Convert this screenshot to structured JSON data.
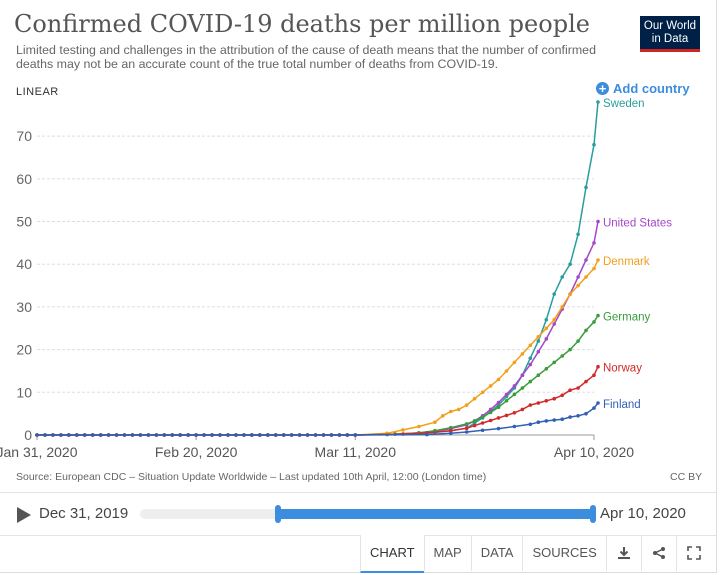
{
  "header": {
    "title": "Confirmed COVID-19 deaths per million people",
    "subtitle": "Limited testing and challenges in the attribution of the cause of death means that the number of confirmed deaths may not be an accurate count of the true total number of deaths from COVID-19.",
    "logo_line1": "Our World",
    "logo_line2": "in Data",
    "scale_mode": "LINEAR",
    "add_country": "Add country"
  },
  "footer": {
    "source": "Source: European CDC – Situation Update Worldwide – Last updated 10th April, 12:00 (London time)",
    "license": "CC BY"
  },
  "timeline": {
    "start_date": "Dec 31, 2019",
    "end_date": "Apr 10, 2020"
  },
  "tabs": [
    {
      "label": "CHART"
    },
    {
      "label": "MAP"
    },
    {
      "label": "DATA"
    },
    {
      "label": "SOURCES"
    }
  ],
  "chart_data": {
    "type": "line",
    "title": "Confirmed COVID-19 deaths per million people",
    "x_tick_labels": [
      "Jan 31, 2020",
      "Feb 20, 2020",
      "Mar 11, 2020",
      "Apr 10, 2020"
    ],
    "x_tick_days": [
      0,
      20,
      40,
      70
    ],
    "ylim": [
      0,
      78
    ],
    "y_ticks": [
      0,
      10,
      20,
      30,
      40,
      50,
      60,
      70
    ],
    "xlim_days": [
      0,
      70
    ],
    "series": [
      {
        "name": "Sweden",
        "color": "#2a9d9f",
        "values": [
          [
            40,
            0
          ],
          [
            44,
            0.1
          ],
          [
            48,
            0.3
          ],
          [
            50,
            0.6
          ],
          [
            52,
            1
          ],
          [
            54,
            1.6
          ],
          [
            55,
            2.8
          ],
          [
            56,
            4
          ],
          [
            57,
            5.5
          ],
          [
            58,
            7
          ],
          [
            59,
            9
          ],
          [
            60,
            11
          ],
          [
            61,
            14
          ],
          [
            62,
            18
          ],
          [
            63,
            22
          ],
          [
            64,
            27
          ],
          [
            65,
            33
          ],
          [
            66,
            37
          ],
          [
            67,
            40
          ],
          [
            68,
            47
          ],
          [
            69,
            58
          ],
          [
            70,
            68
          ],
          [
            70.5,
            78
          ]
        ]
      },
      {
        "name": "United States",
        "color": "#a348c8",
        "values": [
          [
            40,
            0
          ],
          [
            45,
            0.2
          ],
          [
            48,
            0.5
          ],
          [
            50,
            0.9
          ],
          [
            52,
            1.5
          ],
          [
            54,
            2.4
          ],
          [
            55,
            3.3
          ],
          [
            56,
            4.5
          ],
          [
            57,
            6
          ],
          [
            58,
            7.6
          ],
          [
            59,
            9.5
          ],
          [
            60,
            11.5
          ],
          [
            61,
            14
          ],
          [
            62,
            16.5
          ],
          [
            63,
            19.5
          ],
          [
            64,
            22.5
          ],
          [
            65,
            26
          ],
          [
            66,
            29.5
          ],
          [
            67,
            33
          ],
          [
            68,
            37
          ],
          [
            69,
            41
          ],
          [
            70,
            45
          ],
          [
            70.5,
            50
          ]
        ]
      },
      {
        "name": "Denmark",
        "color": "#f29f1c",
        "values": [
          [
            40,
            0
          ],
          [
            44,
            0.4
          ],
          [
            46,
            1.2
          ],
          [
            48,
            2
          ],
          [
            50,
            3
          ],
          [
            51,
            4.5
          ],
          [
            52,
            5.5
          ],
          [
            53,
            6
          ],
          [
            54,
            7
          ],
          [
            55,
            8.5
          ],
          [
            56,
            10
          ],
          [
            57,
            11.5
          ],
          [
            58,
            13
          ],
          [
            59,
            15
          ],
          [
            60,
            17
          ],
          [
            61,
            19
          ],
          [
            62,
            21
          ],
          [
            63,
            23
          ],
          [
            64,
            25
          ],
          [
            65,
            27
          ],
          [
            66,
            30
          ],
          [
            67,
            33
          ],
          [
            68,
            35
          ],
          [
            69,
            37
          ],
          [
            70,
            39
          ],
          [
            70.5,
            41
          ]
        ]
      },
      {
        "name": "Germany",
        "color": "#3a9c3a",
        "values": [
          [
            40,
            0
          ],
          [
            45,
            0.2
          ],
          [
            48,
            0.5
          ],
          [
            50,
            1
          ],
          [
            52,
            1.7
          ],
          [
            54,
            2.6
          ],
          [
            55,
            3.3
          ],
          [
            56,
            4.2
          ],
          [
            57,
            5.3
          ],
          [
            58,
            6.5
          ],
          [
            59,
            8
          ],
          [
            60,
            9.5
          ],
          [
            61,
            11
          ],
          [
            62,
            12.5
          ],
          [
            63,
            14
          ],
          [
            64,
            15.5
          ],
          [
            65,
            17
          ],
          [
            66,
            18.5
          ],
          [
            67,
            20
          ],
          [
            68,
            22
          ],
          [
            69,
            24.5
          ],
          [
            70,
            26.5
          ],
          [
            70.5,
            28
          ]
        ]
      },
      {
        "name": "Norway",
        "color": "#d12a2a",
        "values": [
          [
            40,
            0
          ],
          [
            46,
            0.2
          ],
          [
            49,
            0.5
          ],
          [
            52,
            1
          ],
          [
            54,
            1.6
          ],
          [
            55,
            2.2
          ],
          [
            56,
            2.8
          ],
          [
            57,
            3.4
          ],
          [
            58,
            4
          ],
          [
            59,
            4.6
          ],
          [
            60,
            5.2
          ],
          [
            61,
            6
          ],
          [
            62,
            7
          ],
          [
            63,
            7.5
          ],
          [
            64,
            8
          ],
          [
            65,
            8.5
          ],
          [
            66,
            9.3
          ],
          [
            67,
            10.5
          ],
          [
            68,
            11
          ],
          [
            69,
            12.5
          ],
          [
            70,
            14
          ],
          [
            70.5,
            16
          ]
        ]
      },
      {
        "name": "Finland",
        "color": "#3160b4",
        "values": [
          [
            40,
            0
          ],
          [
            49,
            0.1
          ],
          [
            52,
            0.4
          ],
          [
            54,
            0.7
          ],
          [
            56,
            1.1
          ],
          [
            58,
            1.5
          ],
          [
            60,
            2
          ],
          [
            62,
            2.5
          ],
          [
            63,
            3
          ],
          [
            64,
            3.3
          ],
          [
            65,
            3.5
          ],
          [
            66,
            3.7
          ],
          [
            67,
            4.2
          ],
          [
            68,
            4.5
          ],
          [
            69,
            5
          ],
          [
            70,
            6.3
          ],
          [
            70.5,
            7.5
          ]
        ]
      }
    ]
  }
}
